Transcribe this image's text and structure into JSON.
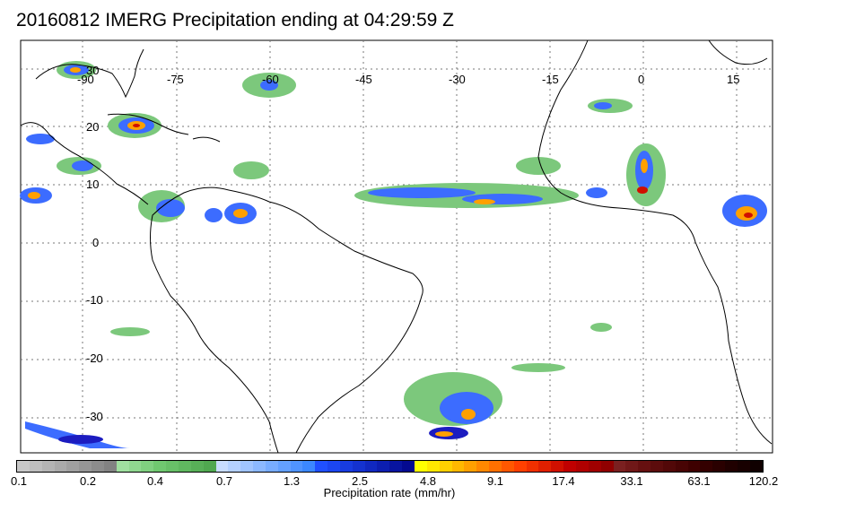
{
  "title": "20160812 IMERG Precipitation ending at 04:29:59 Z",
  "map": {
    "lat_labels": [
      "30",
      "20",
      "10",
      "0",
      "-10",
      "-20",
      "-30"
    ],
    "lon_labels": [
      "-90",
      "-75",
      "-60",
      "-45",
      "-30",
      "-15",
      "0",
      "15"
    ],
    "gridlines": true,
    "coastlines": true
  },
  "colorbar": {
    "title": "Precipitation rate (mm/hr)",
    "tick_labels": [
      "0.1",
      "0.2",
      "0.4",
      "0.7",
      "1.3",
      "2.5",
      "4.8",
      "9.1",
      "17.4",
      "33.1",
      "63.1",
      "120.2"
    ],
    "colors": [
      "#c8c8c8",
      "#bebebe",
      "#b4b4b4",
      "#aaaaaa",
      "#a0a0a0",
      "#969696",
      "#8c8c8c",
      "#828282",
      "#a0e0a0",
      "#90d890",
      "#80d080",
      "#70c870",
      "#68c068",
      "#60b860",
      "#58b058",
      "#50a850",
      "#c8dcff",
      "#b4d0ff",
      "#a0c4ff",
      "#8cb8ff",
      "#78acff",
      "#64a0ff",
      "#5094ff",
      "#3c88ff",
      "#2050ff",
      "#1c46f0",
      "#183ce0",
      "#1432d0",
      "#1028c0",
      "#0c1eb0",
      "#0814a0",
      "#040a90",
      "#ffff00",
      "#ffe800",
      "#ffd000",
      "#ffb800",
      "#ffa000",
      "#ff8800",
      "#ff7000",
      "#ff5800",
      "#ff4000",
      "#f03000",
      "#e02000",
      "#d01000",
      "#c00000",
      "#b00000",
      "#a00000",
      "#900000",
      "#7a2020",
      "#701818",
      "#661010",
      "#5c0c0c",
      "#520808",
      "#480404",
      "#3e0000",
      "#340000",
      "#2a0000",
      "#200000",
      "#180000",
      "#100000"
    ]
  },
  "legend_colors": {
    "land_outline": "#000000",
    "light_rain": "#7cc87c",
    "moderate_rain": "#3c6cff",
    "heavy_rain": "#1c1cc0",
    "intense_rain": "#ffa000",
    "extreme_rain": "#d01000"
  }
}
